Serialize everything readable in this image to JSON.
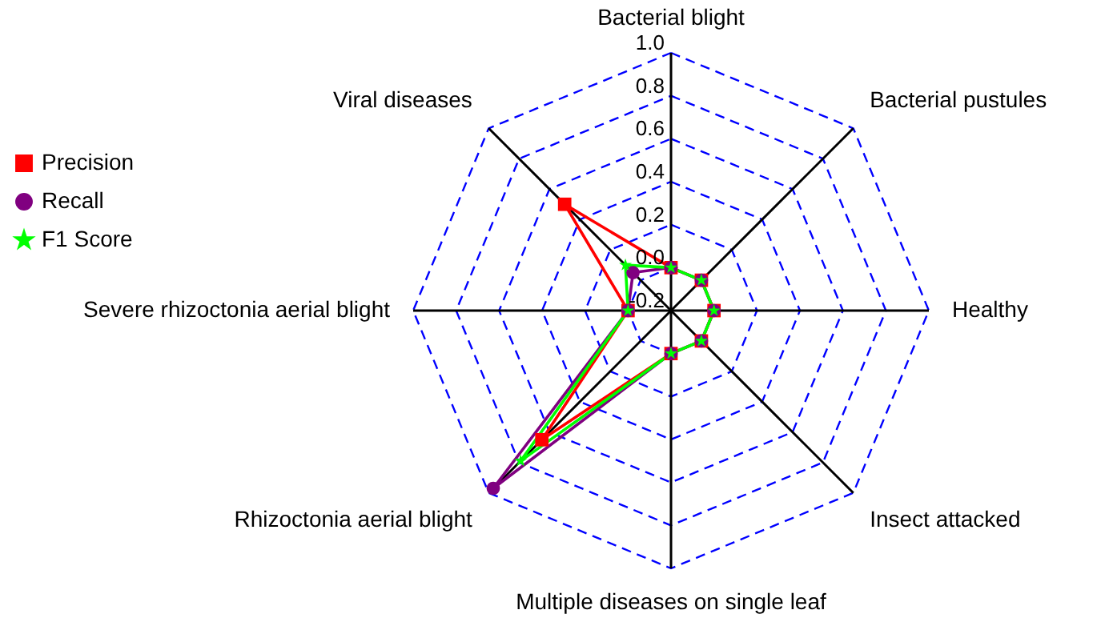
{
  "chart_data": {
    "type": "radar",
    "categories": [
      "Bacterial blight",
      "Bacterial pustules",
      "Healthy",
      "Insect attacked",
      "Multiple diseases on single leaf",
      "Rhizoctonia aerial blight",
      "Severe rhizoctonia aerial blight",
      "Viral diseases"
    ],
    "series": [
      {
        "name": "Precision",
        "color": "#ff0000",
        "marker": "square",
        "values": [
          0.0,
          0.0,
          0.0,
          0.0,
          0.0,
          0.65,
          0.0,
          0.5
        ]
      },
      {
        "name": "Recall",
        "color": "#800080",
        "marker": "circle",
        "values": [
          0.0,
          0.0,
          0.0,
          0.0,
          0.0,
          0.97,
          0.0,
          0.05
        ]
      },
      {
        "name": "F1 Score",
        "color": "#00ff00",
        "marker": "star",
        "values": [
          0.0,
          0.0,
          0.0,
          0.0,
          0.0,
          0.79,
          0.0,
          0.1
        ]
      }
    ],
    "ylim": [
      -0.2,
      1.0
    ],
    "yticks": [
      {
        "value": 1,
        "label": "1.0"
      },
      0.8,
      0.6,
      0.4,
      0.2,
      {
        "value": 0,
        "label": "0.0"
      },
      -0.2
    ],
    "grid": true,
    "legend": "top left"
  }
}
